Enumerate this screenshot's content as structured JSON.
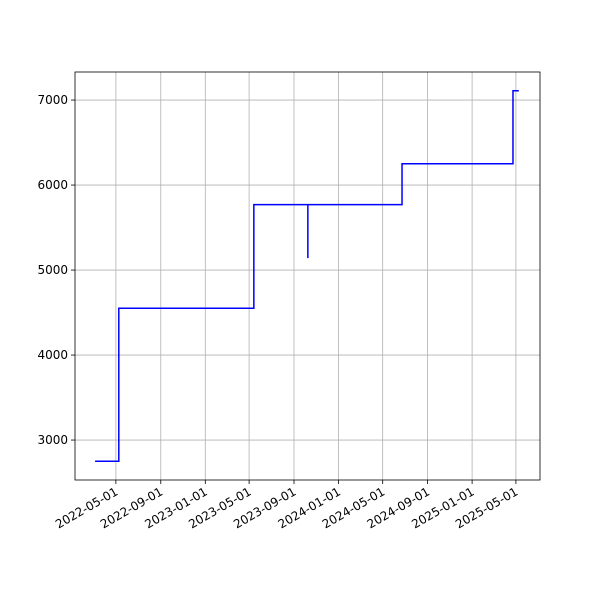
{
  "chart_data": {
    "type": "line",
    "x": [
      "2022-03-05",
      "2022-05-09",
      "2022-05-09",
      "2023-05-14",
      "2023-05-14",
      "2023-10-09",
      "2023-10-09",
      "2023-10-09",
      "2024-06-23",
      "2024-06-23",
      "2025-04-23",
      "2025-04-23",
      "2025-05-09"
    ],
    "series": [
      {
        "color": "#0000ff",
        "values": [
          2750,
          2750,
          4550,
          4550,
          5770,
          5770,
          5140,
          5770,
          5770,
          6250,
          6250,
          7110,
          7110
        ]
      }
    ],
    "xlim": [
      "2022-01-09",
      "2025-07-06"
    ],
    "xticks": [
      "2022-05-01",
      "2022-09-01",
      "2023-01-01",
      "2023-05-01",
      "2023-09-01",
      "2024-01-01",
      "2024-05-01",
      "2024-09-01",
      "2025-01-01",
      "2025-05-01"
    ],
    "ylim": [
      2530,
      7330
    ],
    "yticks": [
      3000,
      4000,
      5000,
      6000,
      7000
    ],
    "grid": true
  }
}
